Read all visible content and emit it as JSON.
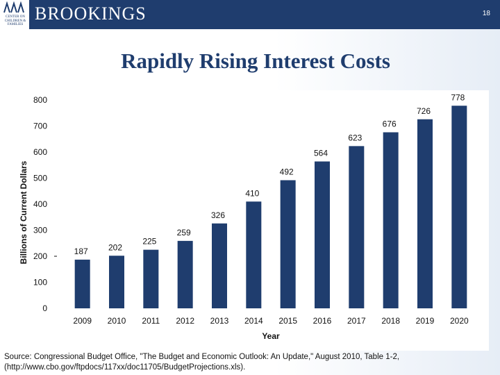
{
  "header": {
    "brand": "BROOKINGS",
    "logo_lines": [
      "CENTER ON",
      "CHILDREN &",
      "FAMILIES"
    ],
    "page_number": "18"
  },
  "title": "Rapidly Rising Interest Costs",
  "chart_data": {
    "type": "bar",
    "title": "Rapidly Rising Interest Costs",
    "xlabel": "Year",
    "ylabel": "Billions of Current Dollars",
    "categories": [
      "2009",
      "2010",
      "2011",
      "2012",
      "2013",
      "2014",
      "2015",
      "2016",
      "2017",
      "2018",
      "2019",
      "2020"
    ],
    "values": [
      187,
      202,
      225,
      259,
      326,
      410,
      492,
      564,
      623,
      676,
      726,
      778
    ],
    "ylim": [
      0,
      800
    ],
    "yticks": [
      0,
      100,
      200,
      300,
      400,
      500,
      600,
      700,
      800
    ],
    "grid": false,
    "bar_color": "#1f3d6e"
  },
  "source_note": "Source: Congressional Budget Office, \"The Budget and Economic Outlook: An Update,\" August 2010, Table 1-2, (http://www.cbo.gov/ftpdocs/117xx/doc11705/BudgetProjections.xls)."
}
